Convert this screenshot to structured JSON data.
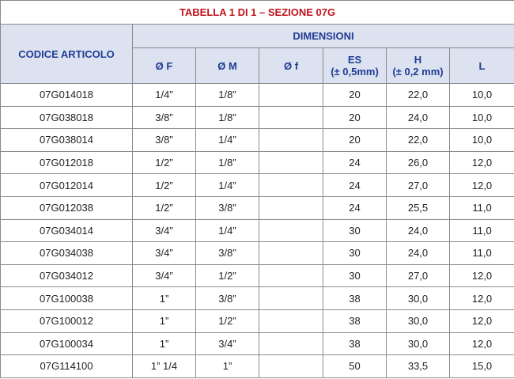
{
  "title": "TABELLA 1 DI 1 – SEZIONE 07G",
  "header": {
    "code": "CODICE ARTICOLO",
    "group": "DIMENSIONI",
    "columns": [
      "Ø F",
      "Ø M",
      "Ø f",
      "ES",
      "H",
      "L"
    ],
    "tolerances": {
      "ES": "(± 0,5mm)",
      "H": "(± 0,2 mm)"
    }
  },
  "table": {
    "rows": [
      [
        "07G014018",
        "1/4”",
        "1/8”",
        "20",
        "22,0",
        "10,0"
      ],
      [
        "07G038018",
        "3/8”",
        "1/8”",
        "20",
        "24,0",
        "10,0"
      ],
      [
        "07G038014",
        "3/8”",
        "1/4”",
        "20",
        "22,0",
        "10,0"
      ],
      [
        "07G012018",
        "1/2”",
        "1/8”",
        "24",
        "26,0",
        "12,0"
      ],
      [
        "07G012014",
        "1/2”",
        "1/4”",
        "24",
        "27,0",
        "12,0"
      ],
      [
        "07G012038",
        "1/2”",
        "3/8”",
        "24",
        "25,5",
        "11,0"
      ],
      [
        "07G034014",
        "3/4”",
        "1/4”",
        "30",
        "24,0",
        "11,0"
      ],
      [
        "07G034038",
        "3/4”",
        "3/8”",
        "30",
        "24,0",
        "11,0"
      ],
      [
        "07G034012",
        "3/4”",
        "1/2”",
        "30",
        "27,0",
        "12,0"
      ],
      [
        "07G100038",
        "1”",
        "3/8”",
        "38",
        "30,0",
        "12,0"
      ],
      [
        "07G100012",
        "1”",
        "1/2”",
        "38",
        "30,0",
        "12,0"
      ],
      [
        "07G100034",
        "1”",
        "3/4”",
        "38",
        "30,0",
        "12,0"
      ],
      [
        "07G114100",
        "1” 1/4",
        "1”",
        "50",
        "33,5",
        "15,0"
      ]
    ]
  }
}
